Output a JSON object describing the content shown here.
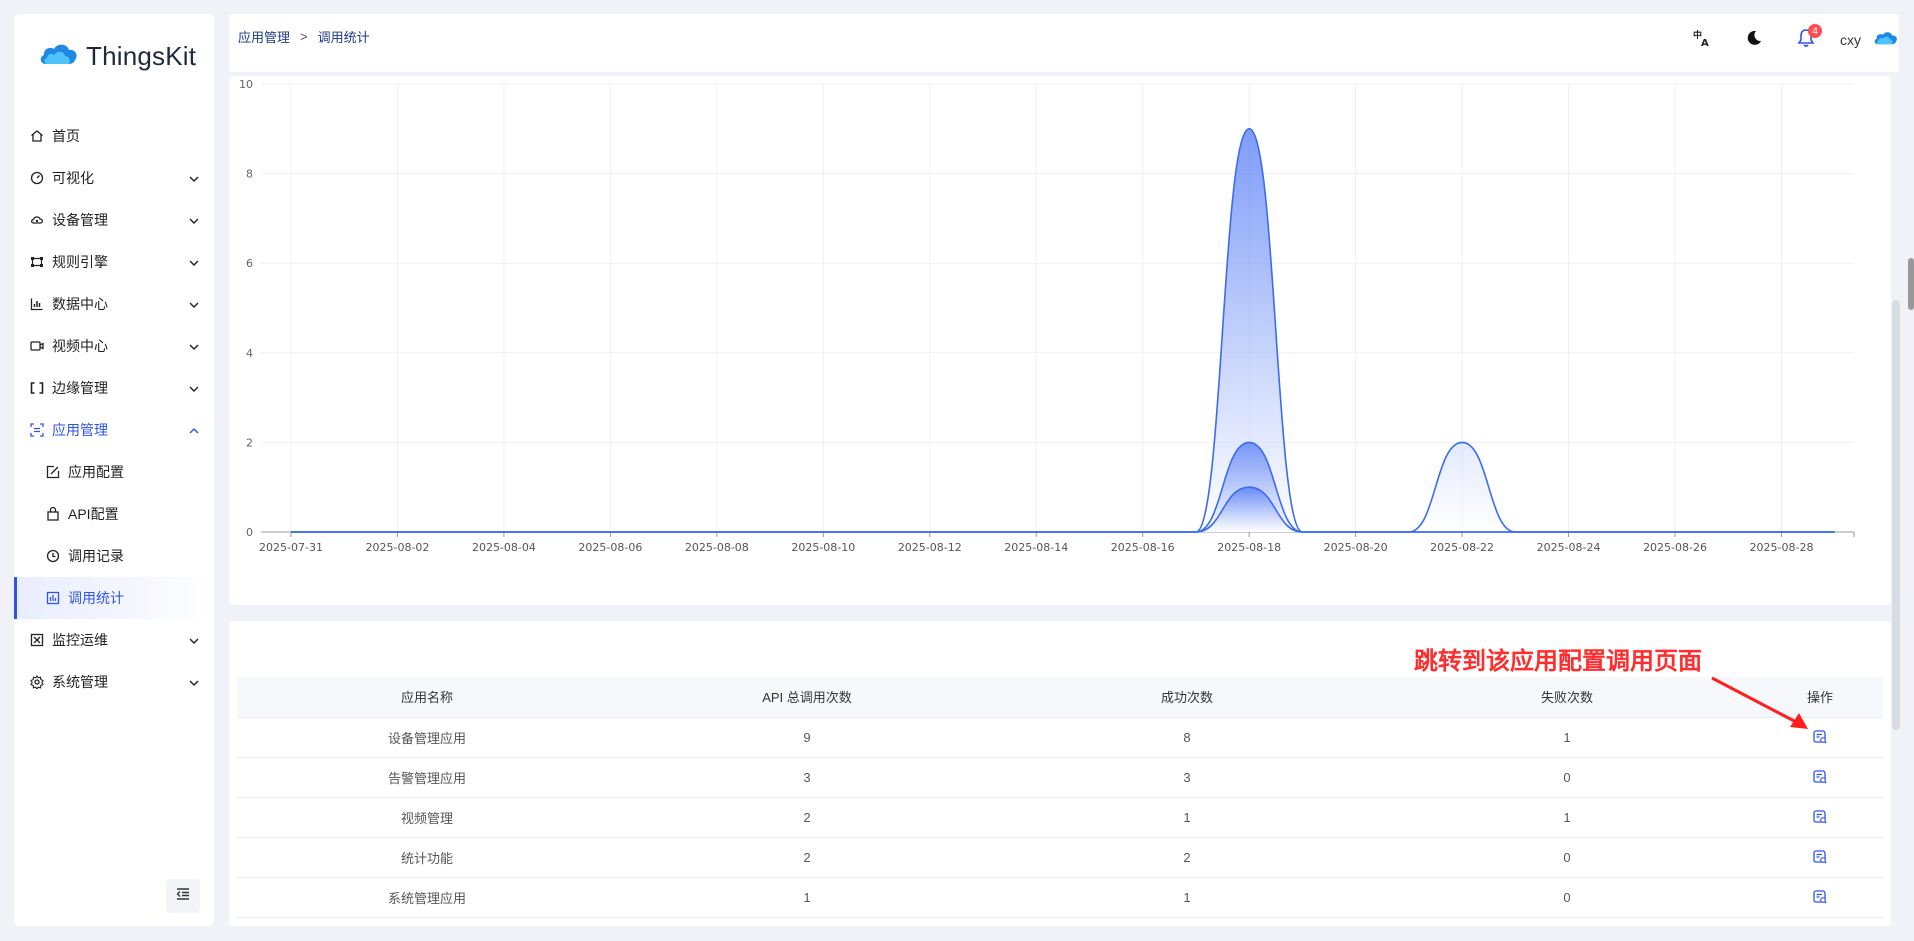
{
  "app": {
    "name": "ThingsKit"
  },
  "sidebar": {
    "items": [
      {
        "label": "首页",
        "icon": "home-icon",
        "expandable": false
      },
      {
        "label": "可视化",
        "icon": "dashboard-icon",
        "expandable": true
      },
      {
        "label": "设备管理",
        "icon": "cloud-device-icon",
        "expandable": true
      },
      {
        "label": "规则引擎",
        "icon": "rule-engine-icon",
        "expandable": true
      },
      {
        "label": "数据中心",
        "icon": "bar-chart-icon",
        "expandable": true
      },
      {
        "label": "视频中心",
        "icon": "video-icon",
        "expandable": true
      },
      {
        "label": "边缘管理",
        "icon": "edge-icon",
        "expandable": true
      },
      {
        "label": "应用管理",
        "icon": "app-manage-icon",
        "expandable": true,
        "expanded": true
      },
      {
        "label": "监控运维",
        "icon": "monitor-icon",
        "expandable": true
      },
      {
        "label": "系统管理",
        "icon": "settings-icon",
        "expandable": true
      }
    ],
    "submenu": [
      {
        "label": "应用配置",
        "icon": "app-config-icon"
      },
      {
        "label": "API配置",
        "icon": "api-config-icon"
      },
      {
        "label": "调用记录",
        "icon": "call-record-icon"
      },
      {
        "label": "调用统计",
        "icon": "call-stats-icon",
        "selected": true
      }
    ]
  },
  "header": {
    "breadcrumb": [
      "应用管理",
      "调用统计"
    ],
    "notification_count": "4",
    "username": "cxy"
  },
  "chart_data": {
    "type": "area",
    "x": [
      "2025-07-31",
      "2025-08-01",
      "2025-08-02",
      "2025-08-03",
      "2025-08-04",
      "2025-08-05",
      "2025-08-06",
      "2025-08-07",
      "2025-08-08",
      "2025-08-09",
      "2025-08-10",
      "2025-08-11",
      "2025-08-12",
      "2025-08-13",
      "2025-08-14",
      "2025-08-15",
      "2025-08-16",
      "2025-08-17",
      "2025-08-18",
      "2025-08-19",
      "2025-08-20",
      "2025-08-21",
      "2025-08-22",
      "2025-08-23",
      "2025-08-24",
      "2025-08-25",
      "2025-08-26",
      "2025-08-27",
      "2025-08-28",
      "2025-08-29"
    ],
    "xtick_labels": [
      "2025-07-31",
      "2025-08-02",
      "2025-08-04",
      "2025-08-06",
      "2025-08-08",
      "2025-08-10",
      "2025-08-12",
      "2025-08-14",
      "2025-08-16",
      "2025-08-18",
      "2025-08-20",
      "2025-08-22",
      "2025-08-24",
      "2025-08-26",
      "2025-08-28"
    ],
    "yticks": [
      0,
      2,
      4,
      6,
      8,
      10
    ],
    "ylim": [
      0,
      10
    ],
    "series": [
      {
        "values": [
          0,
          0,
          0,
          0,
          0,
          0,
          0,
          0,
          0,
          0,
          0,
          0,
          0,
          0,
          0,
          0,
          0,
          0,
          9,
          0,
          0,
          0,
          2,
          0,
          0,
          0,
          0,
          0,
          0,
          0
        ]
      },
      {
        "values": [
          0,
          0,
          0,
          0,
          0,
          0,
          0,
          0,
          0,
          0,
          0,
          0,
          0,
          0,
          0,
          0,
          0,
          0,
          2,
          0,
          0,
          0,
          0,
          0,
          0,
          0,
          0,
          0,
          0,
          0
        ]
      },
      {
        "values": [
          0,
          0,
          0,
          0,
          0,
          0,
          0,
          0,
          0,
          0,
          0,
          0,
          0,
          0,
          0,
          0,
          0,
          0,
          1,
          0,
          0,
          0,
          0,
          0,
          0,
          0,
          0,
          0,
          0,
          0
        ]
      }
    ],
    "grid": true,
    "colors": {
      "line": "#3b6cf0",
      "fill_top": "#4a73f5",
      "fill_bottom": "#ffffff",
      "grid": "#eef0f5",
      "axis": "#999999"
    }
  },
  "table": {
    "annotation": "跳转到该应用配置调用页面",
    "headers": [
      "应用名称",
      "API 总调用次数",
      "成功次数",
      "失败次数",
      "操作"
    ],
    "rows": [
      {
        "name": "设备管理应用",
        "total": "9",
        "success": "8",
        "fail": "1"
      },
      {
        "name": "告警管理应用",
        "total": "3",
        "success": "3",
        "fail": "0"
      },
      {
        "name": "视频管理",
        "total": "2",
        "success": "1",
        "fail": "1"
      },
      {
        "name": "统计功能",
        "total": "2",
        "success": "2",
        "fail": "0"
      },
      {
        "name": "系统管理应用",
        "total": "1",
        "success": "1",
        "fail": "0"
      }
    ]
  },
  "colors": {
    "accent": "#2f54eb",
    "annotation": "#ff2d2d"
  }
}
